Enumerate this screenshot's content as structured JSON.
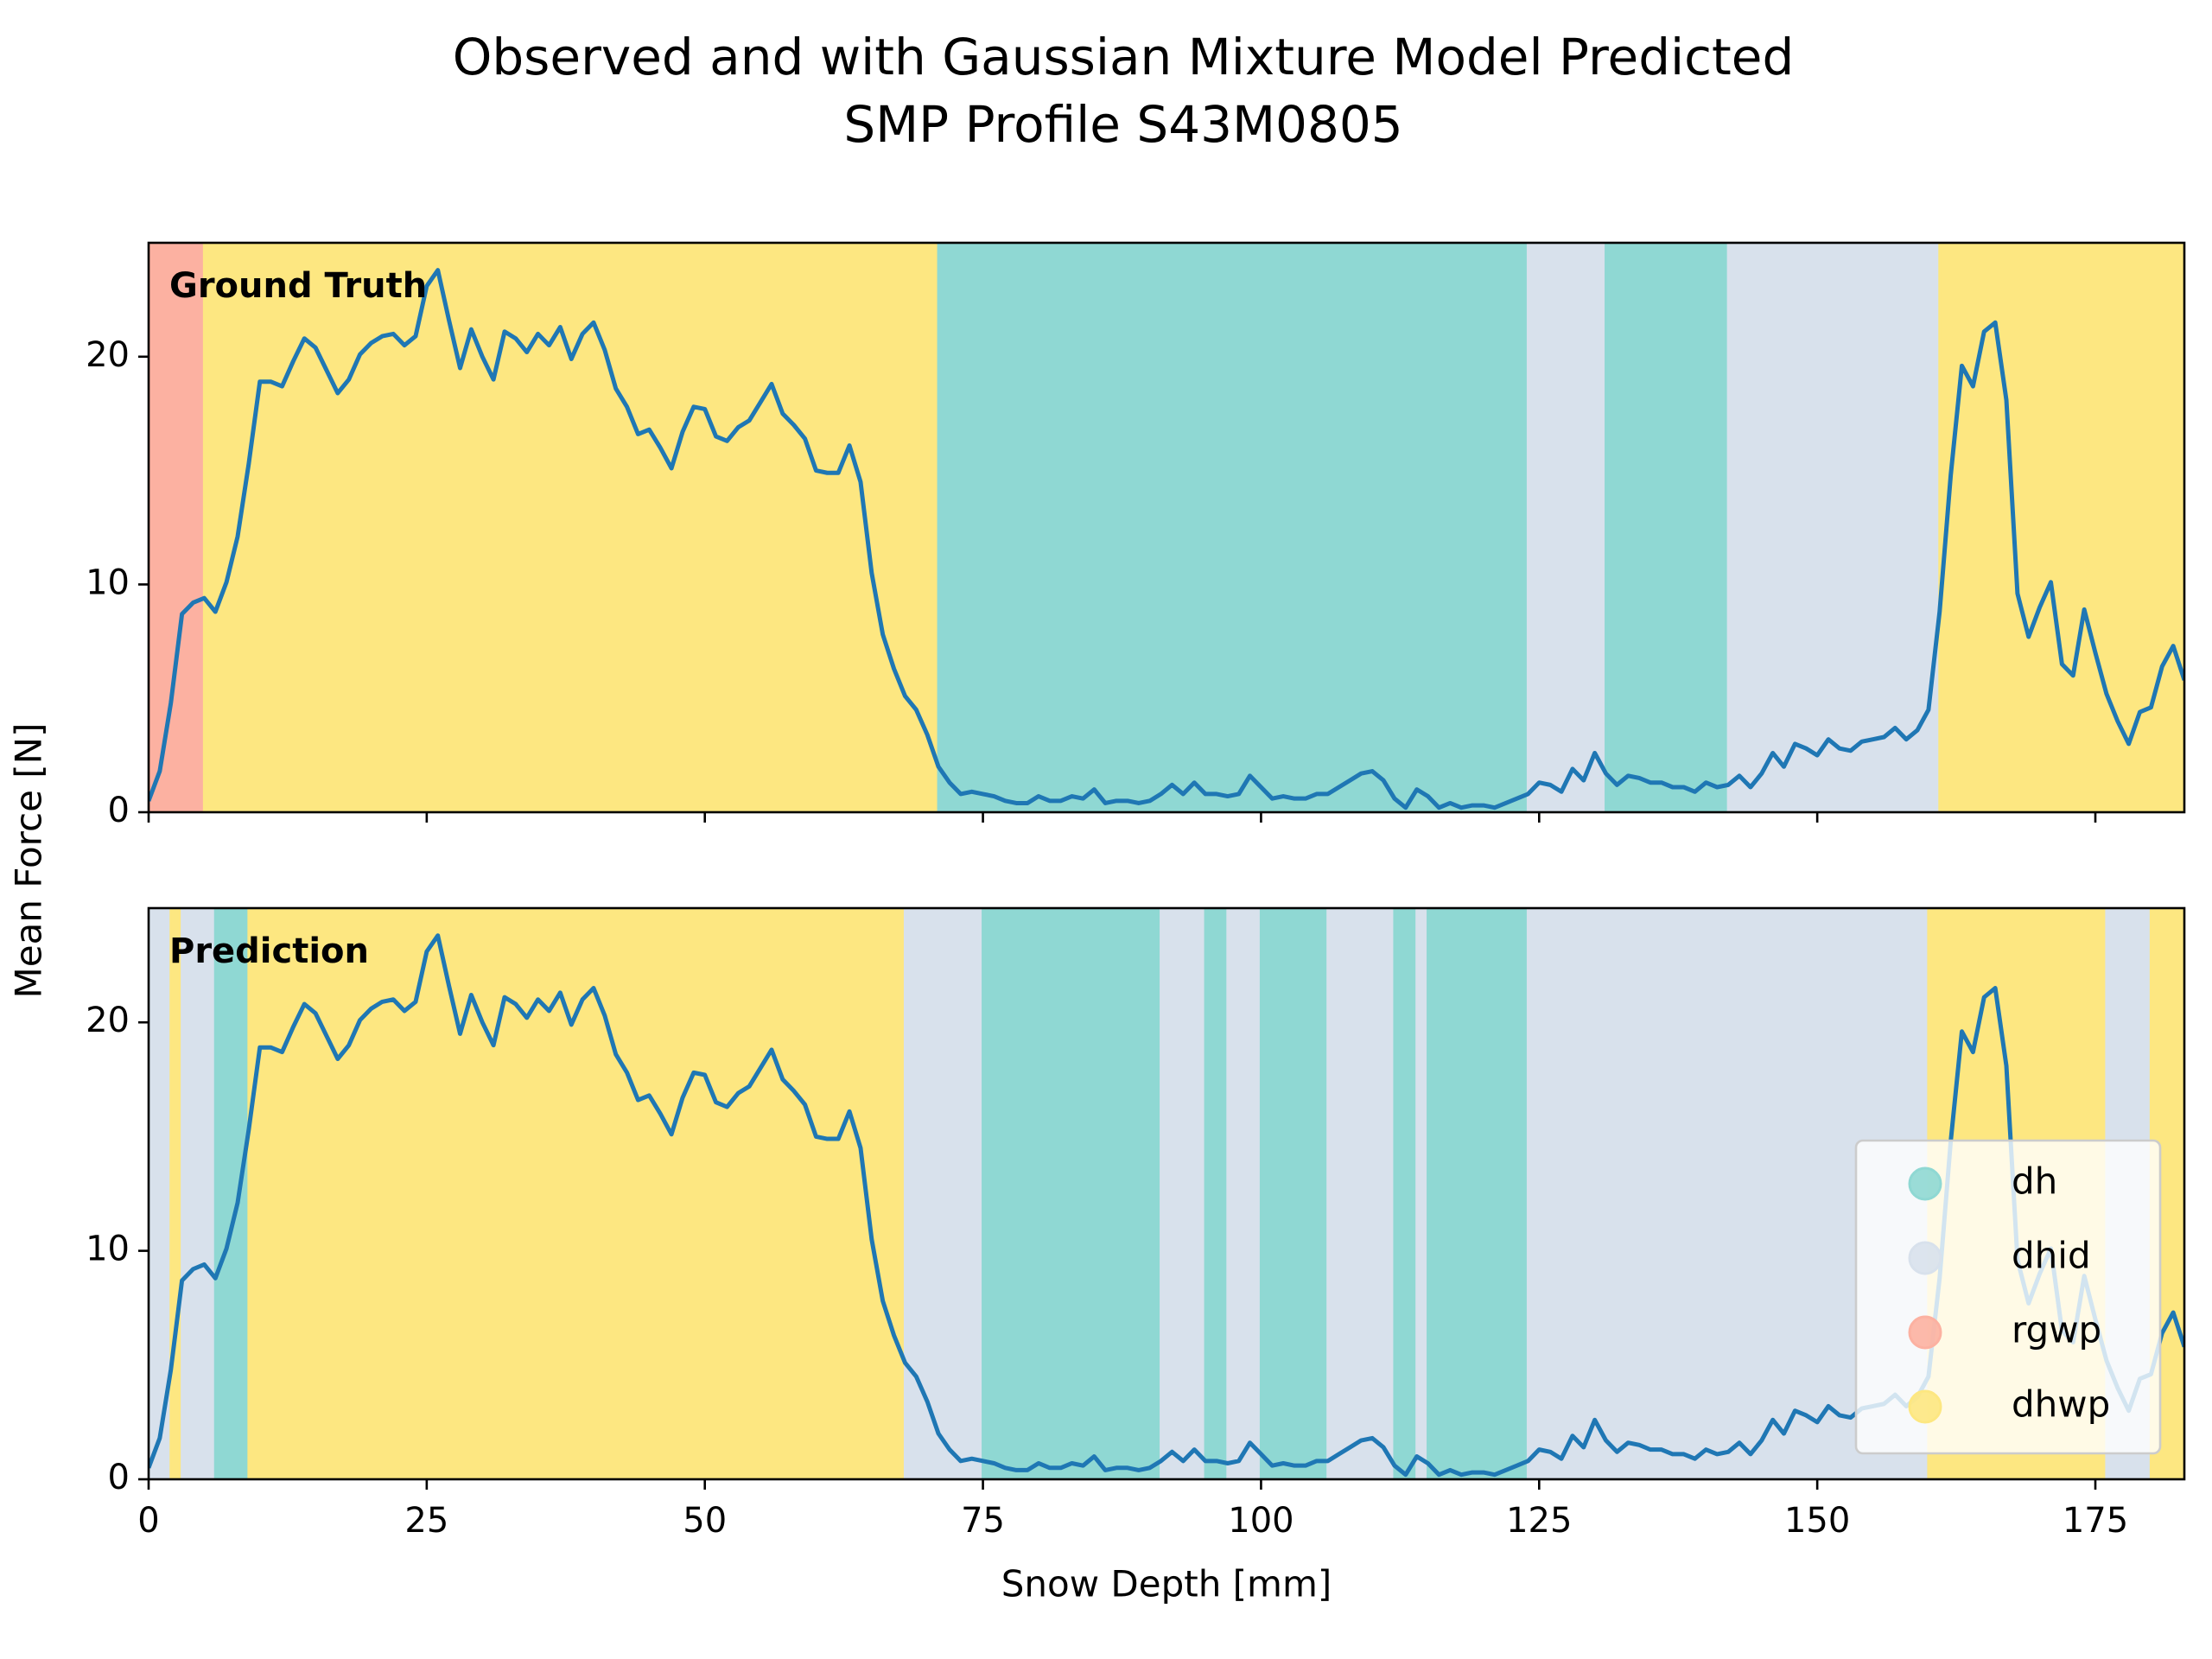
{
  "title": [
    "Observed and with Gaussian Mixture Model Predicted",
    "SMP Profile S43M0805"
  ],
  "ylabel": "Mean Force [N]",
  "classes": [
    {
      "name": "dh",
      "color": "#8fd8d3"
    },
    {
      "name": "dhid",
      "color": "#d8e1ec"
    },
    {
      "name": "rgwp",
      "color": "#fcb1a1"
    },
    {
      "name": "dhwp",
      "color": "#fde781"
    }
  ],
  "chart_data": [
    {
      "type": "line",
      "label": "Ground Truth",
      "color": "#1f77b4",
      "xlim": [
        0,
        183
      ],
      "ylim": [
        0,
        25
      ],
      "xticks": [
        0,
        25,
        50,
        75,
        100,
        125,
        150,
        175
      ],
      "yticks": [
        0,
        10,
        20
      ],
      "segments": [
        {
          "class": "rgwp",
          "start": 0,
          "end": 5
        },
        {
          "class": "dhwp",
          "start": 5,
          "end": 71
        },
        {
          "class": "dh",
          "start": 71,
          "end": 124
        },
        {
          "class": "dhid",
          "start": 124,
          "end": 131
        },
        {
          "class": "dh",
          "start": 131,
          "end": 142
        },
        {
          "class": "dhid",
          "start": 142,
          "end": 161
        },
        {
          "class": "dhwp",
          "start": 161,
          "end": 183
        }
      ],
      "x": [
        0,
        1,
        2,
        3,
        4,
        5,
        6,
        7,
        8,
        9,
        10,
        11,
        12,
        13,
        14,
        15,
        16,
        17,
        18,
        19,
        20,
        21,
        22,
        23,
        24,
        25,
        26,
        27,
        28,
        29,
        30,
        31,
        32,
        33,
        34,
        35,
        36,
        37,
        38,
        39,
        40,
        41,
        42,
        43,
        44,
        45,
        46,
        47,
        48,
        49,
        50,
        51,
        52,
        53,
        54,
        55,
        56,
        57,
        58,
        59,
        60,
        61,
        62,
        63,
        64,
        65,
        66,
        67,
        68,
        69,
        70,
        71,
        72,
        73,
        74,
        75,
        76,
        77,
        78,
        79,
        80,
        81,
        82,
        83,
        84,
        85,
        86,
        87,
        88,
        89,
        90,
        91,
        92,
        93,
        94,
        95,
        96,
        97,
        98,
        99,
        100,
        101,
        102,
        103,
        104,
        105,
        106,
        107,
        108,
        109,
        110,
        111,
        112,
        113,
        114,
        115,
        116,
        117,
        118,
        119,
        120,
        121,
        122,
        123,
        124,
        125,
        126,
        127,
        128,
        129,
        130,
        131,
        132,
        133,
        134,
        135,
        136,
        137,
        138,
        139,
        140,
        141,
        142,
        143,
        144,
        145,
        146,
        147,
        148,
        149,
        150,
        151,
        152,
        153,
        154,
        155,
        156,
        157,
        158,
        159,
        160,
        161,
        162,
        163,
        164,
        165,
        166,
        167,
        168,
        169,
        170,
        171,
        172,
        173,
        174,
        175,
        176,
        177,
        178,
        179,
        180,
        181,
        182,
        183
      ],
      "values": [
        0.5,
        1.8,
        4.8,
        8.7,
        9.2,
        9.4,
        8.8,
        10.1,
        12.1,
        15.3,
        18.9,
        18.9,
        18.7,
        19.8,
        20.8,
        20.4,
        19.4,
        18.4,
        19.0,
        20.1,
        20.6,
        20.9,
        21.0,
        20.5,
        20.9,
        23.1,
        23.8,
        21.6,
        19.5,
        21.2,
        20.0,
        19.0,
        21.1,
        20.8,
        20.2,
        21.0,
        20.5,
        21.3,
        19.9,
        21.0,
        21.5,
        20.3,
        18.6,
        17.8,
        16.6,
        16.8,
        16.0,
        15.1,
        16.7,
        17.8,
        17.7,
        16.5,
        16.3,
        16.9,
        17.2,
        18.0,
        18.8,
        17.5,
        17.0,
        16.4,
        15.0,
        14.9,
        14.9,
        16.1,
        14.5,
        10.5,
        7.8,
        6.3,
        5.1,
        4.5,
        3.4,
        2.0,
        1.3,
        0.8,
        0.9,
        0.8,
        0.7,
        0.5,
        0.4,
        0.4,
        0.7,
        0.5,
        0.5,
        0.7,
        0.6,
        1.0,
        0.4,
        0.5,
        0.5,
        0.4,
        0.5,
        0.8,
        1.2,
        0.8,
        1.3,
        0.8,
        0.8,
        0.7,
        0.8,
        1.6,
        1.1,
        0.6,
        0.7,
        0.6,
        0.6,
        0.8,
        0.8,
        1.1,
        1.4,
        1.7,
        1.8,
        1.4,
        0.6,
        0.2,
        1.0,
        0.7,
        0.2,
        0.4,
        0.2,
        0.3,
        0.3,
        0.2,
        0.4,
        0.6,
        0.8,
        1.3,
        1.2,
        0.9,
        1.9,
        1.4,
        2.6,
        1.7,
        1.2,
        1.6,
        1.5,
        1.3,
        1.3,
        1.1,
        1.1,
        0.9,
        1.3,
        1.1,
        1.2,
        1.6,
        1.1,
        1.7,
        2.6,
        2.0,
        3.0,
        2.8,
        2.5,
        3.2,
        2.8,
        2.7,
        3.1,
        3.2,
        3.3,
        3.7,
        3.2,
        3.6,
        4.5,
        8.8,
        14.8,
        19.6,
        18.7,
        21.1,
        21.5,
        18.1,
        9.6,
        7.7,
        9.0,
        10.1,
        6.5,
        6.0,
        8.9,
        7.0,
        5.2,
        4.0,
        3.0,
        4.4,
        4.6,
        6.4,
        7.3,
        5.8
      ]
    },
    {
      "type": "line",
      "label": "Prediction",
      "color": "#1f77b4",
      "xlabel": "Snow Depth [mm]",
      "legend": "lower right",
      "xlim": [
        0,
        183
      ],
      "ylim": [
        0,
        25
      ],
      "xticks": [
        0,
        25,
        50,
        75,
        100,
        125,
        150,
        175
      ],
      "yticks": [
        0,
        10,
        20
      ],
      "segments": [
        {
          "class": "dhid",
          "start": 0,
          "end": 2
        },
        {
          "class": "dhwp",
          "start": 2,
          "end": 3
        },
        {
          "class": "dhid",
          "start": 3,
          "end": 6
        },
        {
          "class": "dh",
          "start": 6,
          "end": 9
        },
        {
          "class": "dhwp",
          "start": 9,
          "end": 68
        },
        {
          "class": "dhid",
          "start": 68,
          "end": 75
        },
        {
          "class": "dh",
          "start": 75,
          "end": 91
        },
        {
          "class": "dhid",
          "start": 91,
          "end": 95
        },
        {
          "class": "dh",
          "start": 95,
          "end": 97
        },
        {
          "class": "dhid",
          "start": 97,
          "end": 100
        },
        {
          "class": "dh",
          "start": 100,
          "end": 106
        },
        {
          "class": "dhid",
          "start": 106,
          "end": 112
        },
        {
          "class": "dh",
          "start": 112,
          "end": 114
        },
        {
          "class": "dhid",
          "start": 114,
          "end": 115
        },
        {
          "class": "dh",
          "start": 115,
          "end": 124
        },
        {
          "class": "dhid",
          "start": 124,
          "end": 160
        },
        {
          "class": "dhwp",
          "start": 160,
          "end": 176
        },
        {
          "class": "dhid",
          "start": 176,
          "end": 180
        },
        {
          "class": "dhwp",
          "start": 180,
          "end": 183
        }
      ],
      "x": [
        0,
        1,
        2,
        3,
        4,
        5,
        6,
        7,
        8,
        9,
        10,
        11,
        12,
        13,
        14,
        15,
        16,
        17,
        18,
        19,
        20,
        21,
        22,
        23,
        24,
        25,
        26,
        27,
        28,
        29,
        30,
        31,
        32,
        33,
        34,
        35,
        36,
        37,
        38,
        39,
        40,
        41,
        42,
        43,
        44,
        45,
        46,
        47,
        48,
        49,
        50,
        51,
        52,
        53,
        54,
        55,
        56,
        57,
        58,
        59,
        60,
        61,
        62,
        63,
        64,
        65,
        66,
        67,
        68,
        69,
        70,
        71,
        72,
        73,
        74,
        75,
        76,
        77,
        78,
        79,
        80,
        81,
        82,
        83,
        84,
        85,
        86,
        87,
        88,
        89,
        90,
        91,
        92,
        93,
        94,
        95,
        96,
        97,
        98,
        99,
        100,
        101,
        102,
        103,
        104,
        105,
        106,
        107,
        108,
        109,
        110,
        111,
        112,
        113,
        114,
        115,
        116,
        117,
        118,
        119,
        120,
        121,
        122,
        123,
        124,
        125,
        126,
        127,
        128,
        129,
        130,
        131,
        132,
        133,
        134,
        135,
        136,
        137,
        138,
        139,
        140,
        141,
        142,
        143,
        144,
        145,
        146,
        147,
        148,
        149,
        150,
        151,
        152,
        153,
        154,
        155,
        156,
        157,
        158,
        159,
        160,
        161,
        162,
        163,
        164,
        165,
        166,
        167,
        168,
        169,
        170,
        171,
        172,
        173,
        174,
        175,
        176,
        177,
        178,
        179,
        180,
        181,
        182,
        183
      ],
      "values": [
        0.5,
        1.8,
        4.8,
        8.7,
        9.2,
        9.4,
        8.8,
        10.1,
        12.1,
        15.3,
        18.9,
        18.9,
        18.7,
        19.8,
        20.8,
        20.4,
        19.4,
        18.4,
        19.0,
        20.1,
        20.6,
        20.9,
        21.0,
        20.5,
        20.9,
        23.1,
        23.8,
        21.6,
        19.5,
        21.2,
        20.0,
        19.0,
        21.1,
        20.8,
        20.2,
        21.0,
        20.5,
        21.3,
        19.9,
        21.0,
        21.5,
        20.3,
        18.6,
        17.8,
        16.6,
        16.8,
        16.0,
        15.1,
        16.7,
        17.8,
        17.7,
        16.5,
        16.3,
        16.9,
        17.2,
        18.0,
        18.8,
        17.5,
        17.0,
        16.4,
        15.0,
        14.9,
        14.9,
        16.1,
        14.5,
        10.5,
        7.8,
        6.3,
        5.1,
        4.5,
        3.4,
        2.0,
        1.3,
        0.8,
        0.9,
        0.8,
        0.7,
        0.5,
        0.4,
        0.4,
        0.7,
        0.5,
        0.5,
        0.7,
        0.6,
        1.0,
        0.4,
        0.5,
        0.5,
        0.4,
        0.5,
        0.8,
        1.2,
        0.8,
        1.3,
        0.8,
        0.8,
        0.7,
        0.8,
        1.6,
        1.1,
        0.6,
        0.7,
        0.6,
        0.6,
        0.8,
        0.8,
        1.1,
        1.4,
        1.7,
        1.8,
        1.4,
        0.6,
        0.2,
        1.0,
        0.7,
        0.2,
        0.4,
        0.2,
        0.3,
        0.3,
        0.2,
        0.4,
        0.6,
        0.8,
        1.3,
        1.2,
        0.9,
        1.9,
        1.4,
        2.6,
        1.7,
        1.2,
        1.6,
        1.5,
        1.3,
        1.3,
        1.1,
        1.1,
        0.9,
        1.3,
        1.1,
        1.2,
        1.6,
        1.1,
        1.7,
        2.6,
        2.0,
        3.0,
        2.8,
        2.5,
        3.2,
        2.8,
        2.7,
        3.1,
        3.2,
        3.3,
        3.7,
        3.2,
        3.6,
        4.5,
        8.8,
        14.8,
        19.6,
        18.7,
        21.1,
        21.5,
        18.1,
        9.6,
        7.7,
        9.0,
        10.1,
        6.5,
        6.0,
        8.9,
        7.0,
        5.2,
        4.0,
        3.0,
        4.4,
        4.6,
        6.4,
        7.3,
        5.8
      ]
    }
  ]
}
